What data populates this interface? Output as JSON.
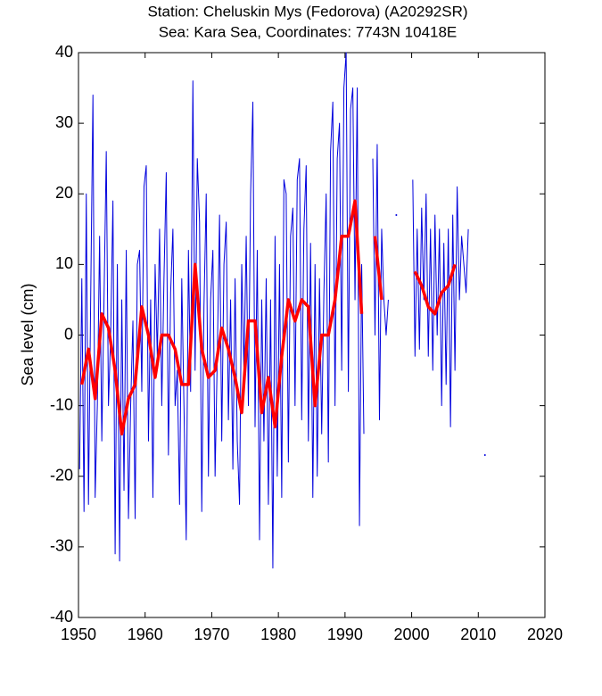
{
  "chart_data": {
    "type": "line",
    "title": "Station: Cheluskin Mys (Fedorova) (A20292SR)",
    "subtitle": "Sea: Kara Sea, Coordinates: 7743N 10418E",
    "y_label": "Sea level (cm)",
    "xlim": [
      1950,
      2020
    ],
    "xticks": [
      1950,
      1960,
      1970,
      1980,
      1990,
      2000,
      2010,
      2020
    ],
    "ylim": [
      -40,
      40
    ],
    "yticks": [
      -40,
      -30,
      -20,
      -10,
      0,
      10,
      20,
      30,
      40
    ],
    "grid": false,
    "series": [
      {
        "color": "#0000dd",
        "x": [
          1950.17,
          1950.5,
          1950.83,
          1951.17,
          1951.5,
          1951.83,
          1952.17,
          1952.5,
          1952.83,
          1953.17,
          1953.5,
          1953.83,
          1954.17,
          1954.5,
          1954.83,
          1955.17,
          1955.5,
          1955.83,
          1956.17,
          1956.5,
          1956.83,
          1957.17,
          1957.5,
          1957.83,
          1958.17,
          1958.5,
          1958.83,
          1959.17,
          1959.5,
          1959.83,
          1960.17,
          1960.5,
          1960.83,
          1961.17,
          1961.5,
          1961.83,
          1962.17,
          1962.5,
          1962.83,
          1963.17,
          1963.5,
          1963.83,
          1964.17,
          1964.5,
          1964.83,
          1965.17,
          1965.5,
          1965.83,
          1966.17,
          1966.5,
          1966.83,
          1967.17,
          1967.5,
          1967.83,
          1968.17,
          1968.5,
          1968.83,
          1969.17,
          1969.5,
          1969.83,
          1970.17,
          1970.5,
          1970.83,
          1971.17,
          1971.5,
          1971.83,
          1972.17,
          1972.5,
          1972.83,
          1973.17,
          1973.5,
          1973.83,
          1974.17,
          1974.5,
          1974.83,
          1975.17,
          1975.5,
          1975.83,
          1976.17,
          1976.5,
          1976.83,
          1977.17,
          1977.5,
          1977.83,
          1978.17,
          1978.5,
          1978.83,
          1979.17,
          1979.5,
          1979.83,
          1980.17,
          1980.5,
          1980.83,
          1981.17,
          1981.5,
          1981.83,
          1982.17,
          1982.5,
          1982.83,
          1983.17,
          1983.5,
          1983.83,
          1984.17,
          1984.5,
          1984.83,
          1985.17,
          1985.5,
          1985.83,
          1986.17,
          1986.5,
          1986.83,
          1987.17,
          1987.5,
          1987.83,
          1988.17,
          1988.5,
          1988.83,
          1989.17,
          1989.5,
          1989.83,
          1990.17,
          1990.5,
          1990.83,
          1991.17,
          1991.5,
          1991.83,
          1992.17,
          1992.5,
          1992.83,
          1993.5,
          1994.17,
          1994.5,
          1994.83,
          1995.17,
          1995.5,
          1995.83,
          1996.17,
          1996.5,
          1997.0,
          1997.7,
          1998.5,
          2000.17,
          2000.5,
          2000.83,
          2001.17,
          2001.5,
          2001.83,
          2002.17,
          2002.5,
          2002.83,
          2003.17,
          2003.5,
          2003.83,
          2004.17,
          2004.5,
          2004.83,
          2005.17,
          2005.5,
          2005.83,
          2006.17,
          2006.5,
          2006.83,
          2007.17,
          2007.5,
          2008.17,
          2008.5,
          2010.0,
          2011.0
        ],
        "values": [
          -19,
          8,
          -25,
          20,
          -24,
          5,
          34,
          -23,
          -10,
          14,
          -15,
          5,
          26,
          -10,
          0,
          19,
          -31,
          10,
          -32,
          5,
          -22,
          12,
          -26,
          -10,
          2,
          -26,
          10,
          12,
          -8,
          21,
          24,
          -15,
          5,
          -23,
          10,
          -3,
          15,
          -10,
          8,
          23,
          -17,
          6,
          15,
          -10,
          -5,
          -24,
          8,
          -10,
          -29,
          12,
          -8,
          36,
          -5,
          25,
          16,
          -25,
          4,
          20,
          -20,
          5,
          12,
          -20,
          -3,
          17,
          -15,
          10,
          16,
          -12,
          5,
          -19,
          8,
          -15,
          -24,
          10,
          -5,
          14,
          -10,
          20,
          33,
          -13,
          12,
          -29,
          5,
          -15,
          8,
          -24,
          5,
          -33,
          14,
          -20,
          10,
          -23,
          22,
          20,
          -18,
          14,
          18,
          -10,
          22,
          25,
          -12,
          15,
          24,
          -15,
          13,
          -23,
          10,
          -20,
          8,
          -14,
          6,
          20,
          -18,
          26,
          33,
          -10,
          25,
          30,
          -5,
          35,
          40,
          -8,
          32,
          35,
          5,
          35,
          -27,
          10,
          -14,
          null,
          25,
          0,
          27,
          -12,
          15,
          5,
          0,
          5,
          null,
          17,
          null,
          22,
          -3,
          15,
          -2,
          18,
          5,
          20,
          -3,
          15,
          -5,
          17,
          0,
          15,
          -10,
          13,
          -7,
          15,
          -13,
          17,
          -5,
          21,
          5,
          14,
          6,
          15,
          null,
          -17
        ]
      },
      {
        "color": "#ff0000",
        "x": [
          1950.5,
          1951.5,
          1952.5,
          1953.5,
          1954.5,
          1955.5,
          1956.5,
          1957.5,
          1958.5,
          1959.5,
          1960.5,
          1961.5,
          1962.5,
          1963.5,
          1964.5,
          1965.5,
          1966.5,
          1967.5,
          1968.5,
          1969.5,
          1970.5,
          1971.5,
          1972.5,
          1973.5,
          1974.5,
          1975.5,
          1976.5,
          1977.5,
          1978.5,
          1979.5,
          1980.5,
          1981.5,
          1982.5,
          1983.5,
          1984.5,
          1985.5,
          1986.5,
          1987.5,
          1988.5,
          1989.5,
          1990.5,
          1991.5,
          1992.5,
          1993.5,
          1994.5,
          1995.5,
          1996.5,
          2000.5,
          2001.5,
          2002.5,
          2003.5,
          2004.5,
          2005.5,
          2006.5
        ],
        "values": [
          -7,
          -2,
          -9,
          3,
          1,
          -5,
          -14,
          -9,
          -7,
          4,
          0,
          -6,
          0,
          0,
          -2,
          -7,
          -7,
          10,
          -2,
          -6,
          -5,
          1,
          -2,
          -6,
          -11,
          2,
          2,
          -11,
          -6,
          -13,
          -3,
          5,
          2,
          5,
          4,
          -10,
          0,
          0,
          5,
          14,
          14,
          19,
          3,
          null,
          14,
          5,
          null,
          9,
          7,
          4,
          3,
          6,
          7,
          10
        ]
      }
    ]
  }
}
